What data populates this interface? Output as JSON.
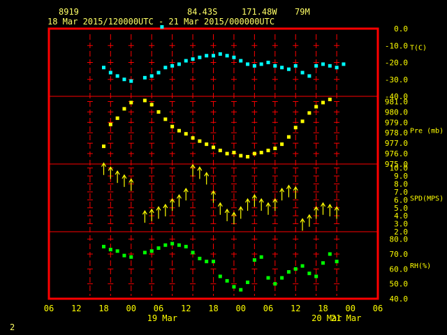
{
  "header": {
    "station": "8919",
    "lat": "84.43S",
    "lon": "171.48W",
    "elev": "79M",
    "range": "18 Mar 2015/120000UTC - 21 Mar 2015/000000UTC"
  },
  "page_number": "2",
  "colors": {
    "frame": "#ff0000",
    "ticks": "#ff0000",
    "labels": "#ffff00",
    "temp": "#00ffff",
    "pres": "#ffff00",
    "spd": "#ffff00",
    "rh": "#00ff00"
  },
  "chart_data": {
    "type": "scatter",
    "x_axis": {
      "unit": "hour",
      "range": [
        6,
        54
      ],
      "tick_labels": [
        "06",
        "12",
        "18",
        "00",
        "06",
        "12",
        "18",
        "00",
        "06",
        "12",
        "18",
        "00",
        "06"
      ],
      "day_labels": [
        {
          "label": "19 Mar",
          "x": 24
        },
        {
          "label": "20 Mar",
          "x": 48
        },
        {
          "label": "21 Mar",
          "x": 72
        }
      ]
    },
    "panels": [
      {
        "name": "temperature",
        "label": "T(C)",
        "range": [
          -40,
          0
        ],
        "tick_labels": [
          "0.0",
          "-10.0",
          "-20.0",
          "-30.0",
          "-40.0"
        ],
        "tick_values": [
          0,
          -10,
          -20,
          -30,
          -40
        ],
        "points": [
          [
            14,
            -23
          ],
          [
            15,
            -26
          ],
          [
            16,
            -28
          ],
          [
            17,
            -30
          ],
          [
            18,
            -31
          ],
          [
            20,
            -29
          ],
          [
            21,
            -28
          ],
          [
            22,
            -26
          ],
          [
            23,
            -23
          ],
          [
            24,
            -22
          ],
          [
            25,
            -21
          ],
          [
            26,
            -19
          ],
          [
            27,
            -18
          ],
          [
            28,
            -17
          ],
          [
            29,
            -16
          ],
          [
            30,
            -16
          ],
          [
            31,
            -15
          ],
          [
            32,
            -16
          ],
          [
            33,
            -17
          ],
          [
            34,
            -19
          ],
          [
            35,
            -21
          ],
          [
            36,
            -22
          ],
          [
            37,
            -21
          ],
          [
            38,
            -20
          ],
          [
            39,
            -22
          ],
          [
            40,
            -23
          ],
          [
            41,
            -24
          ],
          [
            42,
            -22
          ],
          [
            43,
            -26
          ],
          [
            44,
            -28
          ],
          [
            45,
            -22
          ],
          [
            46,
            -21
          ],
          [
            47,
            -22
          ],
          [
            48,
            -23
          ],
          [
            49,
            -21
          ],
          [
            22.5,
            1
          ]
        ]
      },
      {
        "name": "pressure",
        "label": "Pre (mb)",
        "range": [
          975,
          981.5
        ],
        "tick_labels": [
          "981.0",
          "980.0",
          "979.0",
          "978.0",
          "977.0",
          "976.0",
          "975.0"
        ],
        "tick_values": [
          981,
          980,
          979,
          978,
          977,
          976,
          975
        ],
        "points": [
          [
            14,
            976.7
          ],
          [
            15,
            978.8
          ],
          [
            16,
            979.4
          ],
          [
            17,
            980.3
          ],
          [
            18,
            980.9
          ],
          [
            20,
            981.1
          ],
          [
            21,
            980.7
          ],
          [
            22,
            980.0
          ],
          [
            23,
            979.3
          ],
          [
            24,
            978.6
          ],
          [
            25,
            978.2
          ],
          [
            26,
            977.9
          ],
          [
            27,
            977.5
          ],
          [
            28,
            977.2
          ],
          [
            29,
            976.9
          ],
          [
            30,
            976.6
          ],
          [
            31,
            976.3
          ],
          [
            32,
            976.0
          ],
          [
            33,
            976.1
          ],
          [
            34,
            975.8
          ],
          [
            35,
            975.7
          ],
          [
            36,
            976.0
          ],
          [
            37,
            976.1
          ],
          [
            38,
            976.3
          ],
          [
            39,
            976.5
          ],
          [
            40,
            976.9
          ],
          [
            41,
            977.6
          ],
          [
            42,
            978.5
          ],
          [
            43,
            979.1
          ],
          [
            44,
            979.9
          ],
          [
            45,
            980.5
          ],
          [
            46,
            980.9
          ],
          [
            47,
            981.2
          ]
        ]
      },
      {
        "name": "wind",
        "label": "SPD(MPS)",
        "range": [
          2,
          10.5
        ],
        "tick_labels": [
          "10.0",
          "9.0",
          "8.0",
          "7.0",
          "6.0",
          "5.0",
          "4.0",
          "3.0",
          "2.0"
        ],
        "tick_values": [
          10,
          9,
          8,
          7,
          6,
          5,
          4,
          3,
          2
        ],
        "points": [
          [
            14,
            10.0
          ],
          [
            15,
            9.5
          ],
          [
            16,
            9.0
          ],
          [
            17,
            8.5
          ],
          [
            18,
            8.0
          ],
          [
            20,
            4.0
          ],
          [
            21,
            4.2
          ],
          [
            22,
            4.5
          ],
          [
            23,
            4.8
          ],
          [
            24,
            5.5
          ],
          [
            25,
            6.0
          ],
          [
            26,
            6.8
          ],
          [
            27,
            9.8
          ],
          [
            28,
            9.5
          ],
          [
            29,
            8.8
          ],
          [
            30,
            6.5
          ],
          [
            31,
            5.0
          ],
          [
            32,
            4.2
          ],
          [
            33,
            3.8
          ],
          [
            34,
            4.5
          ],
          [
            35,
            5.5
          ],
          [
            36,
            6.0
          ],
          [
            37,
            5.5
          ],
          [
            38,
            5.0
          ],
          [
            39,
            5.5
          ],
          [
            40,
            6.8
          ],
          [
            41,
            7.2
          ],
          [
            42,
            7.0
          ],
          [
            43,
            3.0
          ],
          [
            44,
            3.5
          ],
          [
            45,
            4.5
          ],
          [
            46,
            5.0
          ],
          [
            47,
            4.8
          ],
          [
            48,
            4.5
          ]
        ]
      },
      {
        "name": "humidity",
        "label": "RH(%)",
        "range": [
          40,
          85
        ],
        "tick_labels": [
          "80.0",
          "70.0",
          "60.0",
          "50.0",
          "40.0"
        ],
        "tick_values": [
          80,
          70,
          60,
          50,
          40
        ],
        "points": [
          [
            14,
            75
          ],
          [
            15,
            73
          ],
          [
            16,
            72
          ],
          [
            17,
            69
          ],
          [
            18,
            68
          ],
          [
            20,
            71
          ],
          [
            21,
            72
          ],
          [
            22,
            74
          ],
          [
            23,
            76
          ],
          [
            24,
            77
          ],
          [
            25,
            76
          ],
          [
            26,
            75
          ],
          [
            27,
            71
          ],
          [
            28,
            67
          ],
          [
            29,
            65
          ],
          [
            30,
            65
          ],
          [
            31,
            55
          ],
          [
            32,
            52
          ],
          [
            33,
            48
          ],
          [
            34,
            46
          ],
          [
            35,
            51
          ],
          [
            36,
            66
          ],
          [
            37,
            68
          ],
          [
            38,
            54
          ],
          [
            39,
            50
          ],
          [
            40,
            54
          ],
          [
            41,
            58
          ],
          [
            42,
            60
          ],
          [
            43,
            62
          ],
          [
            44,
            57
          ],
          [
            45,
            55
          ],
          [
            46,
            64
          ],
          [
            47,
            70
          ],
          [
            48,
            65
          ]
        ]
      }
    ]
  }
}
